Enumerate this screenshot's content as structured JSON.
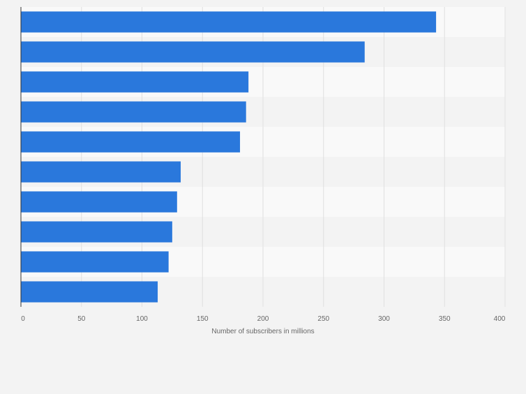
{
  "chart_data": {
    "type": "bar",
    "orientation": "horizontal",
    "categories": [
      "",
      "",
      "",
      "",
      "",
      "",
      "",
      "",
      "",
      ""
    ],
    "values": [
      343,
      284,
      188,
      186,
      181,
      132,
      129,
      125,
      122,
      113
    ],
    "title": "",
    "xlabel": "Number of subscribers in millions",
    "ylabel": "",
    "xlim": [
      0,
      400
    ],
    "x_ticks": [
      0,
      50,
      100,
      150,
      200,
      250,
      300,
      350,
      400
    ],
    "grid": true,
    "legend": "none",
    "colors": {
      "bar": "#2a78dc",
      "background": "#f3f3f3",
      "band_light": "#f9f9f9",
      "band_dark": "#f3f3f3",
      "grid": "#e0e0e0",
      "axis": "#333333",
      "text": "#666666"
    }
  }
}
